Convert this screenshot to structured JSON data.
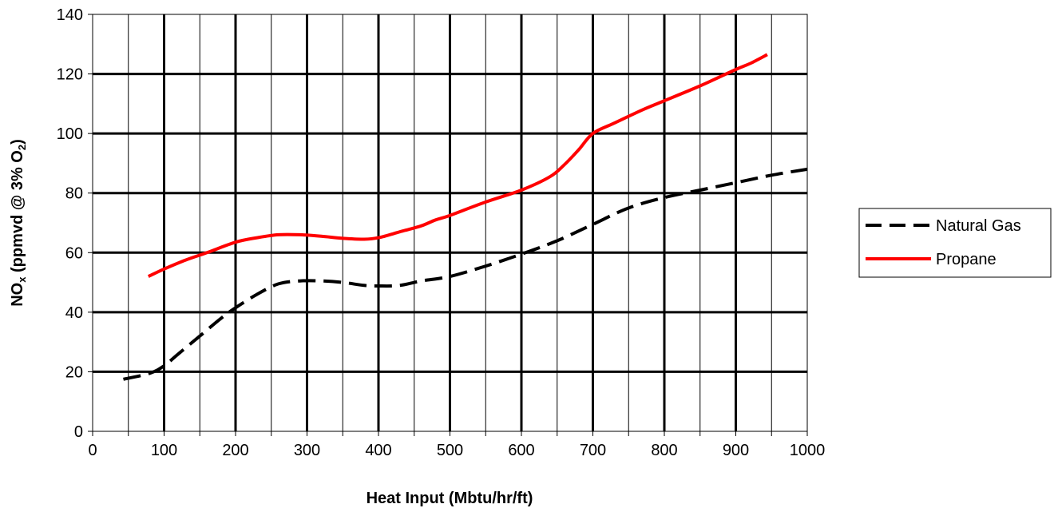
{
  "chart_data": {
    "type": "line",
    "title": "",
    "xlabel": "Heat Input (Mbtu/hr/ft)",
    "ylabel_main": "NO",
    "ylabel_sub": "x",
    "ylabel_mid": " (ppmvd @ 3% O",
    "ylabel_sub2": "2",
    "ylabel_end": ")",
    "xlim": [
      0,
      1000
    ],
    "ylim": [
      0,
      140
    ],
    "x_major_ticks": [
      0,
      100,
      200,
      300,
      400,
      500,
      600,
      700,
      800,
      900,
      1000
    ],
    "x_tick_labels": [
      "0",
      "100",
      "200",
      "300",
      "400",
      "500",
      "600",
      "700",
      "800",
      "900",
      "1000"
    ],
    "x_minor_ticks": [
      50,
      150,
      250,
      350,
      450,
      550,
      650,
      750,
      850,
      950
    ],
    "y_major_ticks": [
      0,
      20,
      40,
      60,
      80,
      100,
      120,
      140
    ],
    "y_tick_labels": [
      "0",
      "20",
      "40",
      "60",
      "80",
      "100",
      "120",
      "140"
    ],
    "grid": true,
    "legend_position": "right",
    "series": [
      {
        "name": "Natural Gas",
        "color": "#000000",
        "style": "dashed",
        "x": [
          43,
          80,
          100,
          120,
          150,
          180,
          200,
          230,
          260,
          290,
          320,
          350,
          380,
          400,
          430,
          460,
          500,
          550,
          600,
          650,
          700,
          750,
          800,
          850,
          900,
          950,
          1000
        ],
        "y": [
          17.5,
          19.5,
          22,
          26,
          32,
          38,
          41.5,
          46,
          49.5,
          50.5,
          50.5,
          50,
          49,
          48.8,
          49,
          50.5,
          52,
          55.5,
          59.5,
          64,
          69.5,
          75,
          78.5,
          81,
          83.5,
          86,
          88
        ]
      },
      {
        "name": "Propane",
        "color": "#ff0000",
        "style": "solid",
        "x": [
          78,
          100,
          130,
          160,
          200,
          230,
          260,
          290,
          320,
          350,
          380,
          400,
          430,
          460,
          480,
          500,
          550,
          600,
          640,
          660,
          680,
          700,
          730,
          770,
          800,
          850,
          900,
          920,
          944
        ],
        "y": [
          52,
          54.5,
          57.5,
          60,
          63.5,
          65,
          66,
          66,
          65.5,
          64.8,
          64.5,
          65,
          67,
          69,
          71,
          72.5,
          77,
          81,
          85.5,
          89.5,
          94.5,
          100,
          103.5,
          108,
          111,
          116,
          121.5,
          123.5,
          126.5
        ]
      }
    ]
  }
}
